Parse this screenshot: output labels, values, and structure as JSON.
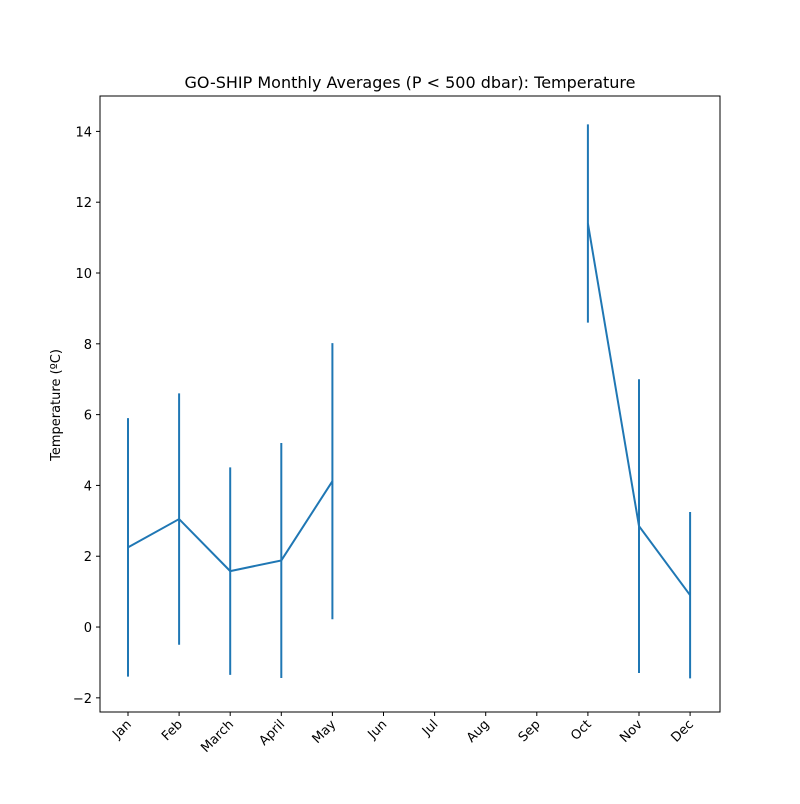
{
  "chart_data": {
    "type": "line",
    "title": "GO-SHIP Monthly Averages (P < 500 dbar): Temperature",
    "xlabel": "",
    "ylabel": "Temperature (ºC)",
    "categories": [
      "Jan",
      "Feb",
      "March",
      "April",
      "May",
      "Jun",
      "Jul",
      "Aug",
      "Sep",
      "Oct",
      "Nov",
      "Dec"
    ],
    "series": [
      {
        "values": [
          2.25,
          3.05,
          1.58,
          1.88,
          4.12,
          null,
          null,
          null,
          null,
          11.4,
          2.85,
          0.9
        ],
        "error": [
          3.65,
          3.55,
          2.93,
          3.32,
          3.9,
          null,
          null,
          null,
          null,
          2.8,
          4.15,
          2.35
        ],
        "color": "#1f77b4"
      }
    ],
    "ylim": [
      -2.4,
      15.0
    ],
    "yticks": [
      -2,
      0,
      2,
      4,
      6,
      8,
      10,
      12,
      14
    ],
    "grid": false,
    "legend": "none"
  }
}
